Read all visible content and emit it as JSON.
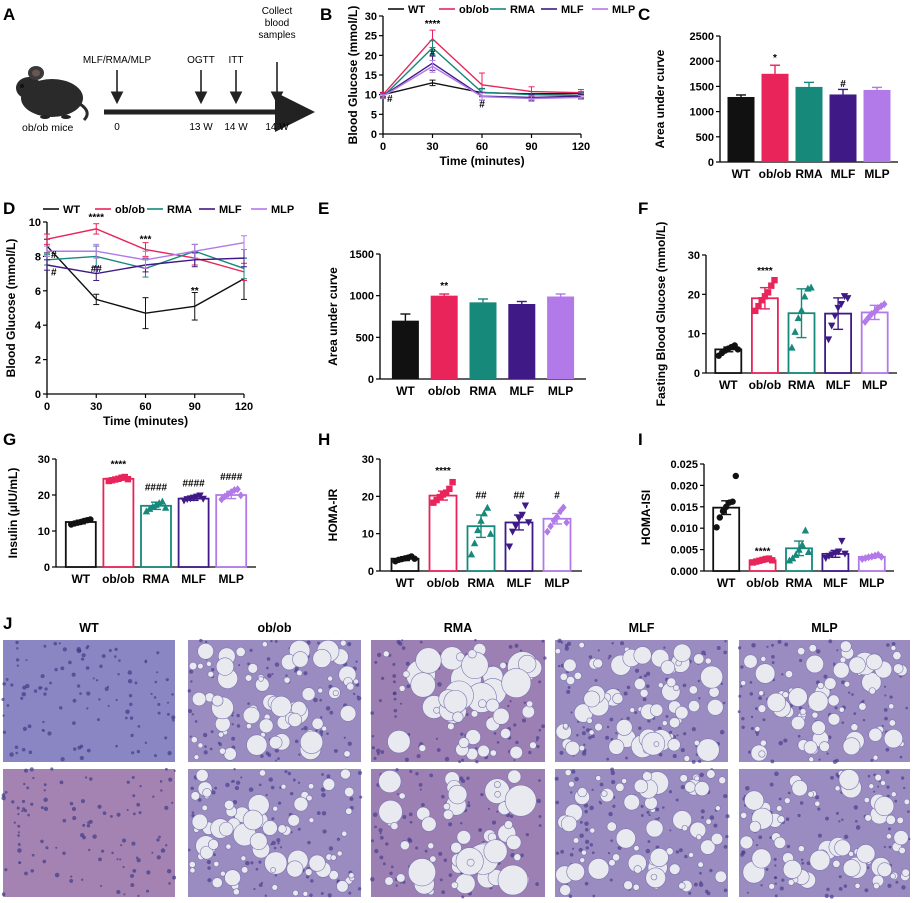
{
  "colors": {
    "WT": "#111111",
    "ob/ob": "#e8245a",
    "RMA": "#16897a",
    "MLF": "#3f1a86",
    "MLP": "#b27ae8",
    "mouse": "#2a2a2a",
    "histo_bg": "#8e86bf",
    "histo_pink": "#a8789f",
    "vacuole": "#e9e9f0"
  },
  "panel_labels": [
    "A",
    "B",
    "C",
    "D",
    "E",
    "F",
    "G",
    "H",
    "I",
    "J"
  ],
  "panel_a": {
    "mouse_label": "ob/ob mice",
    "events": [
      {
        "label": "MLF/RMA/MLP",
        "time": "0"
      },
      {
        "label": "OGTT",
        "time": "13 W"
      },
      {
        "label": "ITT",
        "time": "14 W"
      },
      {
        "label": "Collect blood samples",
        "time": "14 W"
      }
    ]
  },
  "chart_data": [
    {
      "panel": "B",
      "type": "line",
      "title": "",
      "xlabel": "Time (minutes)",
      "ylabel": "Blood Glucose (mmol/L)",
      "x": [
        0,
        30,
        60,
        90,
        120
      ],
      "xlim": [
        0,
        120
      ],
      "ylim": [
        0,
        30
      ],
      "xticks": [
        "0",
        "30",
        "60",
        "90",
        "120"
      ],
      "yticks": [
        "0",
        "5",
        "10",
        "15",
        "20",
        "25",
        "30"
      ],
      "legend": {
        "placement": "top"
      },
      "series": [
        {
          "name": "WT",
          "values": [
            10.0,
            13.0,
            10.5,
            10.2,
            10.3
          ],
          "err": [
            0.5,
            0.7,
            1.0,
            0.6,
            0.4
          ]
        },
        {
          "name": "ob/ob",
          "values": [
            10.0,
            24.2,
            12.5,
            10.8,
            10.5
          ],
          "err": [
            0.6,
            2.2,
            3.0,
            1.2,
            0.8
          ]
        },
        {
          "name": "RMA",
          "values": [
            9.5,
            21.9,
            10.6,
            10.0,
            9.8
          ],
          "err": [
            0.5,
            1.8,
            1.0,
            0.8,
            0.6
          ]
        },
        {
          "name": "MLF",
          "values": [
            9.7,
            18.0,
            9.6,
            9.3,
            9.6
          ],
          "err": [
            0.5,
            1.8,
            1.0,
            0.7,
            0.5
          ]
        },
        {
          "name": "MLP",
          "values": [
            9.6,
            17.2,
            9.5,
            9.0,
            9.3
          ],
          "err": [
            0.5,
            1.5,
            0.9,
            0.7,
            0.5
          ]
        }
      ],
      "annotations": [
        {
          "text": "****",
          "x": 30,
          "y": 27.2
        },
        {
          "text": "#",
          "x": 30,
          "y": 19.8
        },
        {
          "text": "#",
          "x": 0,
          "y": 8.1
        },
        {
          "text": "#",
          "x": 60,
          "y": 6.8
        }
      ]
    },
    {
      "panel": "C",
      "type": "bar",
      "title": "",
      "xlabel": "",
      "ylabel": "Area under curve",
      "categories": [
        "WT",
        "ob/ob",
        "RMA",
        "MLF",
        "MLP"
      ],
      "values": [
        1290,
        1750,
        1490,
        1340,
        1430
      ],
      "err": [
        40,
        170,
        90,
        100,
        50
      ],
      "ylim": [
        0,
        2500
      ],
      "yticks": [
        "0",
        "500",
        "1000",
        "1500",
        "2000",
        "2500"
      ],
      "annotations": [
        {
          "text": "*",
          "category": "ob/ob",
          "y": 2000
        },
        {
          "text": "#",
          "category": "MLF",
          "y": 1490
        }
      ]
    },
    {
      "panel": "D",
      "type": "line",
      "title": "",
      "xlabel": "Time (minutes)",
      "ylabel": "Blood Glucose (mmol/L)",
      "x": [
        0,
        30,
        60,
        90,
        120
      ],
      "xlim": [
        0,
        120
      ],
      "ylim": [
        0,
        10
      ],
      "xticks": [
        "0",
        "30",
        "60",
        "90",
        "120"
      ],
      "yticks": [
        "0",
        "2",
        "4",
        "6",
        "8",
        "10"
      ],
      "legend": {
        "placement": "top"
      },
      "series": [
        {
          "name": "WT",
          "values": [
            8.6,
            5.5,
            4.7,
            5.1,
            6.7
          ],
          "err": [
            0.4,
            0.3,
            0.9,
            0.8,
            1.2
          ]
        },
        {
          "name": "ob/ob",
          "values": [
            9.0,
            9.6,
            8.4,
            7.9,
            7.1
          ],
          "err": [
            0.3,
            0.3,
            0.4,
            0.4,
            0.5
          ]
        },
        {
          "name": "RMA",
          "values": [
            7.8,
            8.0,
            7.3,
            8.3,
            7.3
          ],
          "err": [
            0.3,
            0.6,
            0.5,
            0.4,
            0.6
          ]
        },
        {
          "name": "MLF",
          "values": [
            7.5,
            7.0,
            7.5,
            7.8,
            7.9
          ],
          "err": [
            0.3,
            0.4,
            0.4,
            0.4,
            0.5
          ]
        },
        {
          "name": "MLP",
          "values": [
            8.3,
            8.3,
            7.8,
            8.3,
            8.8
          ],
          "err": [
            0.3,
            0.4,
            0.5,
            0.4,
            0.4
          ]
        }
      ],
      "annotations": [
        {
          "text": "****",
          "x": 30,
          "y": 10.1
        },
        {
          "text": "***",
          "x": 60,
          "y": 8.8
        },
        {
          "text": "##",
          "x": 30,
          "y": 7.1
        },
        {
          "text": "**",
          "x": 90,
          "y": 5.8
        },
        {
          "text": "#",
          "x": 0,
          "y": 7.9
        },
        {
          "text": "#",
          "x": 0,
          "y": 6.9
        }
      ]
    },
    {
      "panel": "E",
      "type": "bar",
      "title": "",
      "xlabel": "",
      "ylabel": "Area under curve",
      "categories": [
        "WT",
        "ob/ob",
        "RMA",
        "MLF",
        "MLP"
      ],
      "values": [
        700,
        1000,
        920,
        900,
        990
      ],
      "err": [
        80,
        20,
        40,
        30,
        30
      ],
      "ylim": [
        0,
        1500
      ],
      "yticks": [
        "0",
        "500",
        "1000",
        "1500"
      ],
      "annotations": [
        {
          "text": "**",
          "category": "ob/ob",
          "y": 1080
        }
      ]
    },
    {
      "panel": "F",
      "type": "bar",
      "title": "",
      "xlabel": "",
      "ylabel": "Fasting Blood Glucose (mmol/L)",
      "categories": [
        "WT",
        "ob/ob",
        "RMA",
        "MLF",
        "MLP"
      ],
      "values": [
        6.0,
        19.0,
        15.2,
        15.1,
        15.4
      ],
      "err": [
        0.6,
        2.7,
        6.2,
        4.0,
        1.8
      ],
      "points": [
        [
          4.4,
          5.1,
          5.7,
          6.2,
          6.6,
          7.0,
          6.0
        ],
        [
          15.8,
          17.0,
          18.5,
          19.5,
          20.5,
          22.2,
          23.6
        ],
        [
          6.5,
          10.5,
          14.0,
          16.0,
          19.5,
          21.5,
          21.8
        ],
        [
          8.5,
          12.0,
          14.5,
          16.5,
          17.5,
          19.5,
          19.0
        ],
        [
          13.0,
          14.0,
          15.0,
          15.5,
          16.5,
          17.0,
          17.5
        ]
      ],
      "markers": [
        "circle",
        "square",
        "triangle",
        "triangle-down",
        "diamond"
      ],
      "ylim": [
        0,
        30
      ],
      "yticks": [
        "0",
        "10",
        "20",
        "30"
      ],
      "annotations": [
        {
          "text": "****",
          "category": "ob/ob",
          "y": 25.2
        }
      ]
    },
    {
      "panel": "G",
      "type": "bar",
      "title": "",
      "xlabel": "",
      "ylabel": "Insulin (μIU/mL)",
      "categories": [
        "WT",
        "ob/ob",
        "RMA",
        "MLF",
        "MLP"
      ],
      "values": [
        12.5,
        24.5,
        17.0,
        19.0,
        20.0
      ],
      "err": [
        0.5,
        0.4,
        1.0,
        0.5,
        1.0
      ],
      "points": [
        [
          11.8,
          12.1,
          12.3,
          12.5,
          12.8,
          13.0,
          13.2
        ],
        [
          23.9,
          24.1,
          24.3,
          24.5,
          24.8,
          25.0,
          24.4
        ],
        [
          15.5,
          16.2,
          16.8,
          17.3,
          17.8,
          18.2,
          16.5
        ],
        [
          18.4,
          18.8,
          19.0,
          19.2,
          19.5,
          19.8,
          18.9
        ],
        [
          18.8,
          19.6,
          20.2,
          20.8,
          21.4,
          21.6,
          19.9
        ]
      ],
      "markers": [
        "circle",
        "square",
        "triangle",
        "triangle-down",
        "diamond"
      ],
      "ylim": [
        0,
        30
      ],
      "yticks": [
        "0",
        "10",
        "20",
        "30"
      ],
      "annotations": [
        {
          "text": "****",
          "category": "ob/ob",
          "y": 27.6
        },
        {
          "text": "####",
          "category": "RMA",
          "y": 21.2
        },
        {
          "text": "####",
          "category": "MLF",
          "y": 22.4
        },
        {
          "text": "####",
          "category": "MLP",
          "y": 24.1
        }
      ]
    },
    {
      "panel": "H",
      "type": "bar",
      "title": "",
      "xlabel": "",
      "ylabel": "HOMA-IR",
      "categories": [
        "WT",
        "ob/ob",
        "RMA",
        "MLF",
        "MLP"
      ],
      "values": [
        3.3,
        20.2,
        12.0,
        13.0,
        14.0
      ],
      "err": [
        0.5,
        1.2,
        3.0,
        2.0,
        1.4
      ],
      "points": [
        [
          2.6,
          3.0,
          3.2,
          3.4,
          3.6,
          3.9,
          3.3
        ],
        [
          18.3,
          19.0,
          19.8,
          20.5,
          21.0,
          22.0,
          23.8
        ],
        [
          4.5,
          7.5,
          11.0,
          13.5,
          15.5,
          17.0,
          10.0
        ],
        [
          6.5,
          10.5,
          12.0,
          14.0,
          15.0,
          17.5,
          13.0
        ],
        [
          10.5,
          12.0,
          13.5,
          14.5,
          16.0,
          17.0,
          13.0
        ]
      ],
      "markers": [
        "circle",
        "square",
        "triangle",
        "triangle-down",
        "diamond"
      ],
      "ylim": [
        0,
        30
      ],
      "yticks": [
        "0",
        "10",
        "20",
        "30"
      ],
      "annotations": [
        {
          "text": "****",
          "category": "ob/ob",
          "y": 26.0
        },
        {
          "text": "##",
          "category": "RMA",
          "y": 19.4
        },
        {
          "text": "##",
          "category": "MLF",
          "y": 19.4
        },
        {
          "text": "#",
          "category": "MLP",
          "y": 19.4
        }
      ]
    },
    {
      "panel": "I",
      "type": "bar",
      "title": "",
      "xlabel": "",
      "ylabel": "HOMA-ISI",
      "categories": [
        "WT",
        "ob/ob",
        "RMA",
        "MLF",
        "MLP"
      ],
      "values": [
        0.0148,
        0.0025,
        0.0053,
        0.004,
        0.0033
      ],
      "err": [
        0.0016,
        0.0003,
        0.0017,
        0.0008,
        0.0003
      ],
      "points": [
        [
          0.0102,
          0.0125,
          0.014,
          0.015,
          0.016,
          0.0162,
          0.0222
        ],
        [
          0.002,
          0.0022,
          0.0024,
          0.0026,
          0.0028,
          0.0029,
          0.0025
        ],
        [
          0.0025,
          0.003,
          0.0038,
          0.005,
          0.0062,
          0.0095,
          0.0045
        ],
        [
          0.003,
          0.0035,
          0.0038,
          0.0042,
          0.0045,
          0.007,
          0.004
        ],
        [
          0.0028,
          0.003,
          0.0032,
          0.0034,
          0.0036,
          0.0038,
          0.0033
        ]
      ],
      "markers": [
        "circle",
        "square",
        "triangle",
        "triangle-down",
        "diamond"
      ],
      "ylim": [
        0,
        0.025
      ],
      "yticks": [
        "0.000",
        "0.005",
        "0.010",
        "0.015",
        "0.020",
        "0.025"
      ],
      "annotations": [
        {
          "text": "****",
          "category": "ob/ob",
          "y": 0.0038
        }
      ]
    }
  ],
  "panel_j": {
    "columns": [
      "WT",
      "ob/ob",
      "RMA",
      "MLF",
      "MLP"
    ]
  }
}
